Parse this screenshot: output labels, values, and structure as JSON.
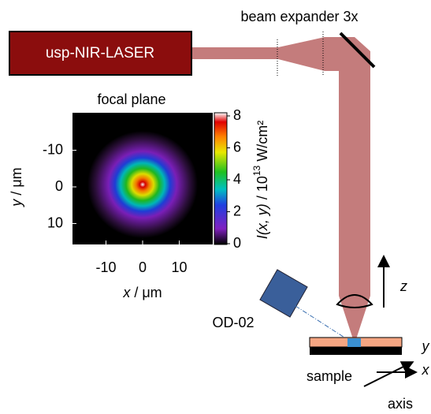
{
  "header": {
    "laser": "usp-NIR-LASER",
    "expander": "beam expander 3x"
  },
  "focal_plane": {
    "title": "focal plane",
    "x_label": {
      "symbol": "x",
      "unit": " / μm"
    },
    "y_label": {
      "symbol": "y",
      "unit": " / μm"
    },
    "x_ticks": [
      -10,
      0,
      10
    ],
    "y_ticks": [
      -10,
      0,
      10
    ],
    "colorbar": {
      "ticks": [
        0,
        2,
        4,
        6,
        8
      ],
      "label": {
        "symbol": "I(x, y)",
        "unit": " / 10",
        "exponent": "13",
        "rest": " W/cm²"
      }
    }
  },
  "labels": {
    "detector": "OD-02",
    "sample": "sample",
    "z": "z",
    "y": "y",
    "x": "x",
    "axis": "axis"
  }
}
